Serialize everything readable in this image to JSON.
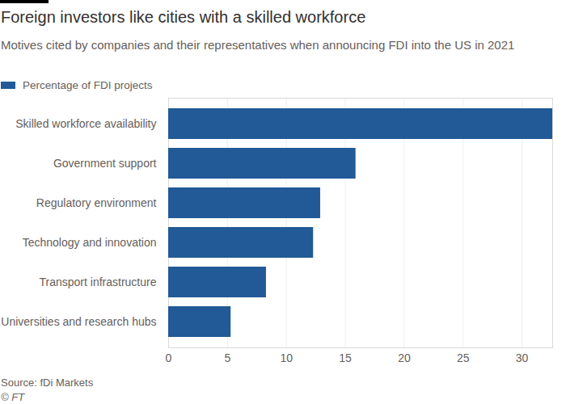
{
  "chart_data": {
    "type": "bar",
    "orientation": "horizontal",
    "title": "Foreign investors like cities with a skilled workforce",
    "subtitle": "Motives cited by companies and their representatives when announcing FDI into the US in 2021",
    "categories": [
      "Skilled workforce availability",
      "Government support",
      "Regulatory environment",
      "Technology and innovation",
      "Transport infrastructure",
      "Universities and research hubs"
    ],
    "series": [
      {
        "name": "Percentage of FDI projects",
        "color": "#215a96",
        "values": [
          32.6,
          15.9,
          12.9,
          12.3,
          8.3,
          5.3
        ]
      }
    ],
    "xlim": [
      0,
      32.6
    ],
    "xticks": [
      0,
      5,
      10,
      15,
      20,
      25,
      30
    ],
    "grid": true,
    "legend": "top-left",
    "source": "Source: fDi Markets",
    "credit": "© FT"
  }
}
